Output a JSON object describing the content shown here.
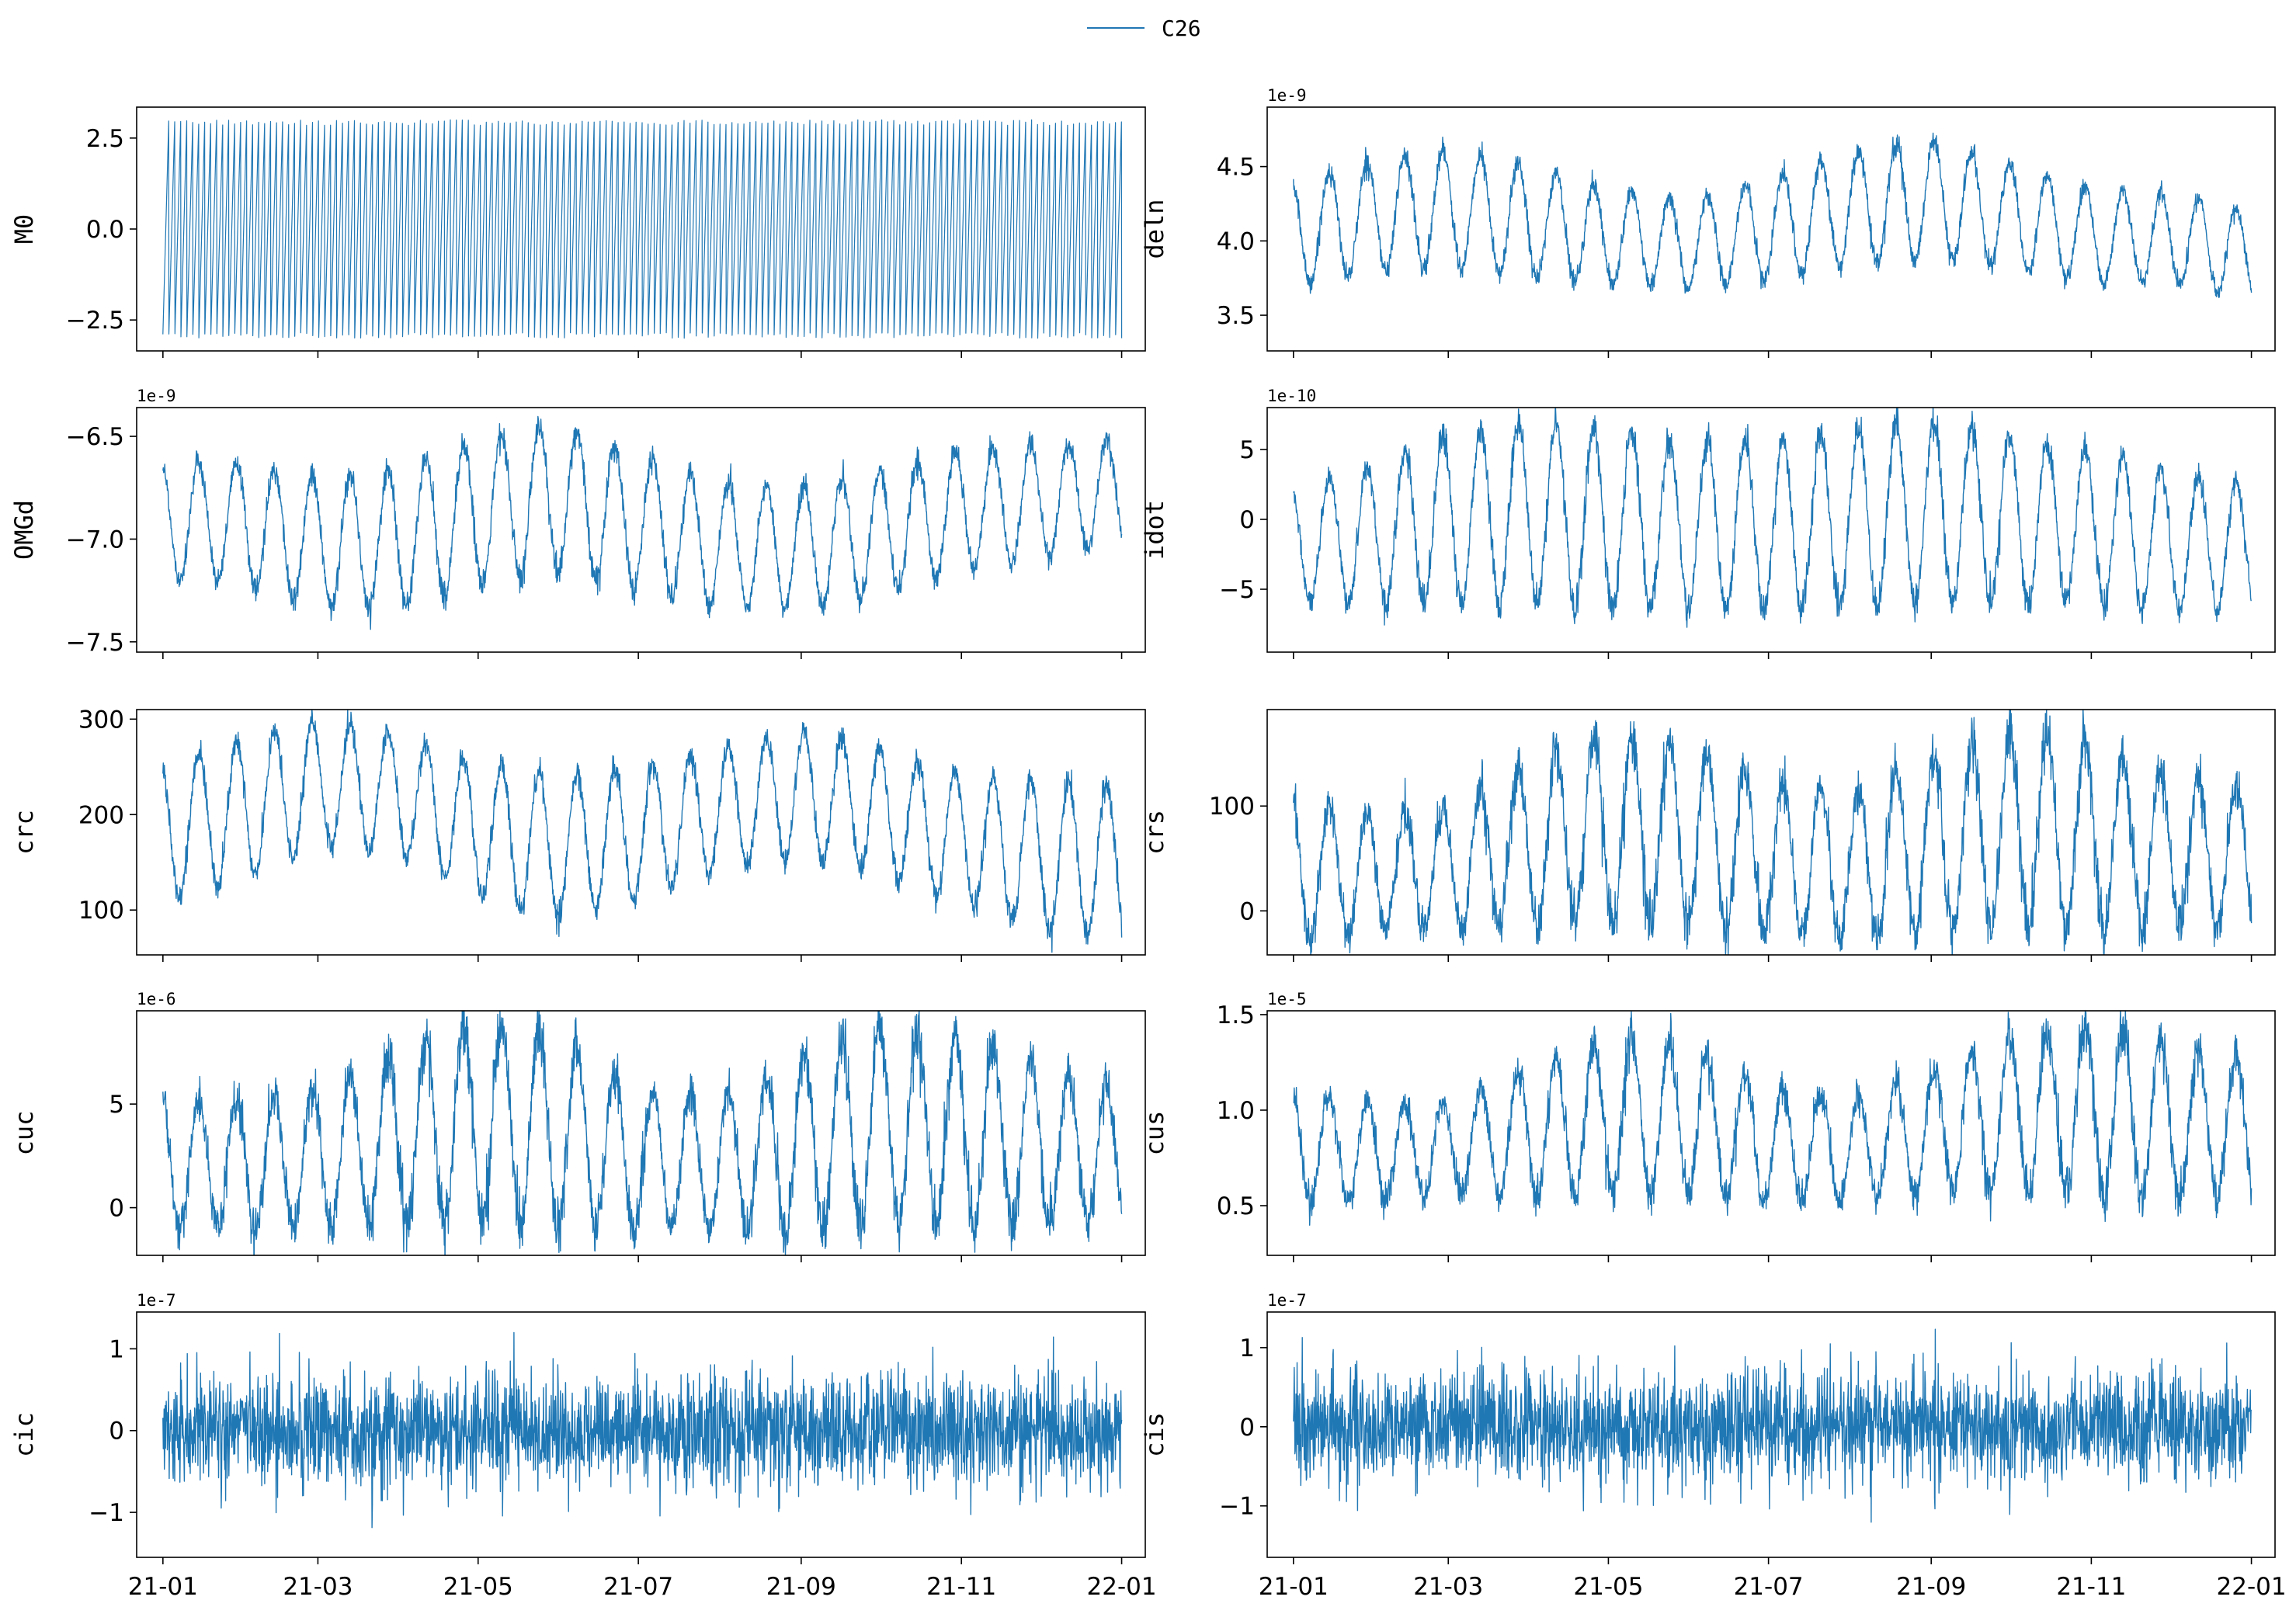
{
  "legend": {
    "label": "C26",
    "color": "#1f77b4"
  },
  "x_axis": {
    "ticks": [
      "21-01",
      "21-03",
      "21-05",
      "21-07",
      "21-09",
      "21-11",
      "22-01"
    ],
    "tick_dates": [
      "2021-01-01",
      "2021-03-01",
      "2021-05-01",
      "2021-07-01",
      "2021-09-01",
      "2021-11-01",
      "2022-01-01"
    ],
    "range": [
      "2020-12-22",
      "2022-01-10"
    ]
  },
  "chart_data": [
    {
      "type": "line",
      "ylabel": "M0",
      "offset_text": "",
      "ylim": [
        -3.35,
        3.35
      ],
      "yticks": [
        "2.5",
        "0.0",
        "−2.5"
      ],
      "ytick_values": [
        2.5,
        0.0,
        -2.5
      ],
      "series": [
        {
          "name": "C26",
          "color": "#1f77b4"
        }
      ],
      "grid": false,
      "data": {
        "x_start": "2021-01-01",
        "x_end": "2022-01-01",
        "envelope": [
          -3.0,
          3.0
        ],
        "pattern": "dense oscillation, ~160 cycles"
      }
    },
    {
      "type": "line",
      "ylabel": "deln",
      "offset_text": "1e-9",
      "ylim": [
        3.26,
        4.9
      ],
      "yticks": [
        "4.5",
        "4.0",
        "3.5"
      ],
      "ytick_values": [
        4.5,
        4.0,
        3.5
      ],
      "series": [
        {
          "name": "C26",
          "color": "#1f77b4"
        }
      ],
      "grid": false,
      "data": {
        "x": [
          "2021-01-01",
          "2021-02-01",
          "2021-03-01",
          "2021-04-01",
          "2021-05-01",
          "2021-06-01",
          "2021-07-01",
          "2021-08-01",
          "2021-09-01",
          "2021-10-01",
          "2021-11-01",
          "2021-12-01",
          "2022-01-01"
        ],
        "mean": [
          4.05,
          4.17,
          4.22,
          4.13,
          4.03,
          3.97,
          4.08,
          4.22,
          4.28,
          4.17,
          4.03,
          4.02,
          3.9
        ],
        "amplitude": [
          0.35,
          0.38,
          0.4,
          0.38,
          0.32,
          0.3,
          0.34,
          0.38,
          0.4,
          0.36,
          0.32,
          0.3,
          0.3
        ]
      }
    },
    {
      "type": "line",
      "ylabel": "OMGd",
      "offset_text": "1e-9",
      "ylim": [
        -7.55,
        -6.36
      ],
      "yticks": [
        "−6.5",
        "−7.0",
        "−7.5"
      ],
      "ytick_values": [
        -6.5,
        -7.0,
        -7.5
      ],
      "series": [
        {
          "name": "C26",
          "color": "#1f77b4"
        }
      ],
      "grid": false,
      "data": {
        "x": [
          "2021-01-01",
          "2021-02-01",
          "2021-03-01",
          "2021-04-01",
          "2021-05-01",
          "2021-06-01",
          "2021-07-01",
          "2021-08-01",
          "2021-09-01",
          "2021-10-01",
          "2021-11-01",
          "2021-12-01",
          "2022-01-01"
        ],
        "mean": [
          -6.9,
          -6.93,
          -7.02,
          -7.0,
          -6.87,
          -6.8,
          -6.92,
          -7.03,
          -7.04,
          -6.97,
          -6.86,
          -6.82,
          -6.76
        ],
        "amplitude": [
          0.28,
          0.3,
          0.32,
          0.34,
          0.36,
          0.36,
          0.33,
          0.3,
          0.3,
          0.3,
          0.3,
          0.28,
          0.25
        ]
      }
    },
    {
      "type": "line",
      "ylabel": "idot",
      "offset_text": "1e-10",
      "ylim": [
        -9.5,
        8
      ],
      "yticks": [
        "5",
        "0",
        "−5"
      ],
      "ytick_values": [
        5,
        0,
        -5
      ],
      "series": [
        {
          "name": "C26",
          "color": "#1f77b4"
        }
      ],
      "grid": false,
      "data": {
        "x": [
          "2021-01-01",
          "2021-02-01",
          "2021-03-01",
          "2021-04-01",
          "2021-05-01",
          "2021-06-01",
          "2021-07-01",
          "2021-08-01",
          "2021-09-01",
          "2021-10-01",
          "2021-11-01",
          "2021-12-01",
          "2022-01-01"
        ],
        "mean": [
          -2.0,
          -1.0,
          0.0,
          0.5,
          0.0,
          -0.5,
          -0.5,
          0.0,
          0.5,
          0.0,
          -0.5,
          -1.5,
          -2.0
        ],
        "amplitude": [
          4.0,
          5.0,
          6.0,
          6.5,
          6.5,
          6.0,
          6.0,
          6.5,
          6.5,
          6.0,
          5.5,
          5.0,
          4.5
        ]
      }
    },
    {
      "type": "line",
      "ylabel": "crc",
      "offset_text": "",
      "ylim": [
        53,
        310
      ],
      "yticks": [
        "300",
        "200",
        "100"
      ],
      "ytick_values": [
        300,
        200,
        100
      ],
      "series": [
        {
          "name": "C26",
          "color": "#1f77b4"
        }
      ],
      "grid": false,
      "data": {
        "x": [
          "2021-01-01",
          "2021-02-01",
          "2021-03-01",
          "2021-04-01",
          "2021-05-01",
          "2021-06-01",
          "2021-07-01",
          "2021-08-01",
          "2021-09-01",
          "2021-10-01",
          "2021-11-01",
          "2021-12-01",
          "2022-01-01"
        ],
        "mean": [
          182,
          205,
          232,
          222,
          185,
          165,
          180,
          205,
          222,
          205,
          175,
          155,
          150
        ],
        "amplitude": [
          70,
          72,
          68,
          62,
          70,
          75,
          70,
          65,
          68,
          65,
          70,
          80,
          80
        ]
      }
    },
    {
      "type": "line",
      "ylabel": "crs",
      "offset_text": "",
      "ylim": [
        -42,
        192
      ],
      "yticks": [
        "100",
        "0"
      ],
      "ytick_values": [
        100,
        0
      ],
      "series": [
        {
          "name": "C26",
          "color": "#1f77b4"
        }
      ],
      "grid": false,
      "data": {
        "x": [
          "2021-01-01",
          "2021-02-01",
          "2021-03-01",
          "2021-04-01",
          "2021-05-01",
          "2021-06-01",
          "2021-07-01",
          "2021-08-01",
          "2021-09-01",
          "2021-10-01",
          "2021-11-01",
          "2021-12-01",
          "2022-01-01"
        ],
        "mean": [
          40,
          35,
          42,
          65,
          80,
          72,
          50,
          45,
          62,
          78,
          72,
          58,
          52
        ],
        "amplitude": [
          70,
          55,
          58,
          80,
          95,
          85,
          72,
          70,
          85,
          92,
          88,
          75,
          65
        ]
      }
    },
    {
      "type": "line",
      "ylabel": "cuc",
      "offset_text": "1e-6",
      "ylim": [
        -2.3,
        9.5
      ],
      "yticks": [
        "5",
        "0"
      ],
      "ytick_values": [
        5,
        0
      ],
      "series": [
        {
          "name": "C26",
          "color": "#1f77b4"
        }
      ],
      "grid": false,
      "data": {
        "x": [
          "2021-01-01",
          "2021-02-01",
          "2021-03-01",
          "2021-04-01",
          "2021-05-01",
          "2021-06-01",
          "2021-07-01",
          "2021-08-01",
          "2021-09-01",
          "2021-10-01",
          "2021-11-01",
          "2021-12-01",
          "2022-01-01"
        ],
        "mean": [
          2.3,
          2.0,
          2.4,
          3.4,
          4.2,
          3.6,
          2.3,
          2.2,
          3.1,
          4.0,
          3.8,
          3.0,
          2.5
        ],
        "amplitude": [
          3.4,
          3.0,
          3.4,
          4.4,
          5.0,
          4.6,
          3.4,
          3.2,
          4.2,
          4.8,
          4.6,
          3.8,
          3.2
        ]
      }
    },
    {
      "type": "line",
      "ylabel": "cus",
      "offset_text": "1e-5",
      "ylim": [
        0.24,
        1.52
      ],
      "yticks": [
        "1.5",
        "1.0",
        "0.5"
      ],
      "ytick_values": [
        1.5,
        1.0,
        0.5
      ],
      "series": [
        {
          "name": "C26",
          "color": "#1f77b4"
        }
      ],
      "grid": false,
      "data": {
        "x": [
          "2021-01-01",
          "2021-02-01",
          "2021-03-01",
          "2021-04-01",
          "2021-05-01",
          "2021-06-01",
          "2021-07-01",
          "2021-08-01",
          "2021-09-01",
          "2021-10-01",
          "2021-11-01",
          "2021-12-01",
          "2022-01-01"
        ],
        "mean": [
          0.82,
          0.78,
          0.8,
          0.88,
          0.98,
          0.95,
          0.82,
          0.8,
          0.88,
          0.98,
          1.0,
          0.95,
          0.9
        ],
        "amplitude": [
          0.3,
          0.25,
          0.25,
          0.33,
          0.42,
          0.4,
          0.3,
          0.27,
          0.33,
          0.4,
          0.45,
          0.42,
          0.35
        ]
      }
    },
    {
      "type": "line",
      "ylabel": "cic",
      "offset_text": "1e-7",
      "ylim": [
        -1.55,
        1.45
      ],
      "yticks": [
        "1",
        "0",
        "−1"
      ],
      "ytick_values": [
        1,
        0,
        -1
      ],
      "series": [
        {
          "name": "C26",
          "color": "#1f77b4"
        }
      ],
      "grid": false,
      "data": {
        "x_start": "2021-01-01",
        "x_end": "2022-01-01",
        "mean": 0.0,
        "envelope": [
          -1.4,
          1.3
        ],
        "pattern": "random noise"
      }
    },
    {
      "type": "line",
      "ylabel": "cis",
      "offset_text": "1e-7",
      "ylim": [
        -1.65,
        1.45
      ],
      "yticks": [
        "1",
        "0",
        "−1"
      ],
      "ytick_values": [
        1,
        0,
        -1
      ],
      "series": [
        {
          "name": "C26",
          "color": "#1f77b4"
        }
      ],
      "grid": false,
      "data": {
        "x_start": "2021-01-01",
        "x_end": "2022-01-01",
        "mean": 0.0,
        "envelope": [
          -1.55,
          1.35
        ],
        "pattern": "random noise"
      }
    }
  ]
}
